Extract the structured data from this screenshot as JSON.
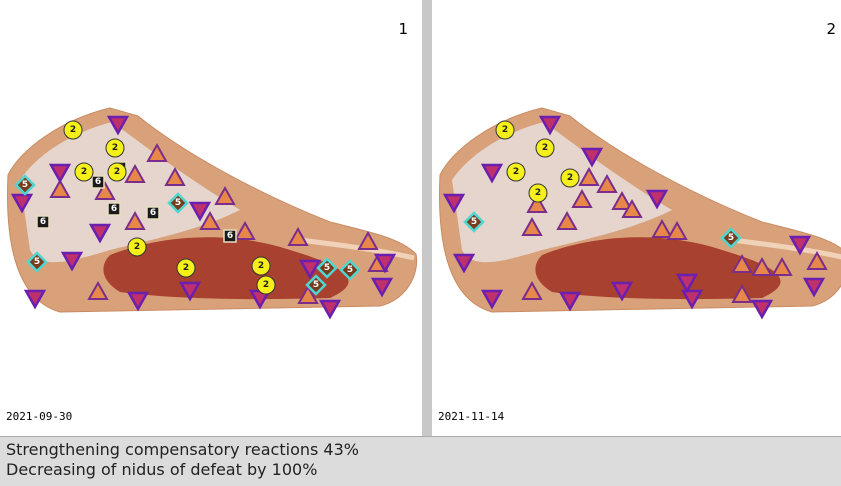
{
  "panels": [
    {
      "number": "1",
      "date": "2021-09-30",
      "circle_labels": [
        "2",
        "2",
        "2",
        "2",
        "2",
        "2",
        "2",
        "2"
      ],
      "square_labels": [
        "6",
        "6",
        "6",
        "6",
        "6",
        "6"
      ],
      "diamond_labels": [
        "5",
        "5",
        "5",
        "5",
        "5",
        "5"
      ]
    },
    {
      "number": "2",
      "date": "2021-11-14",
      "circle_labels": [
        "2",
        "2",
        "2",
        "2",
        "2"
      ],
      "square_labels": [],
      "diamond_labels": [
        "5",
        "5"
      ]
    }
  ],
  "status": {
    "lines": [
      "Strengthening compensatory reactions 43%",
      "Decreasing of nidus of defeat by 100%"
    ]
  }
}
